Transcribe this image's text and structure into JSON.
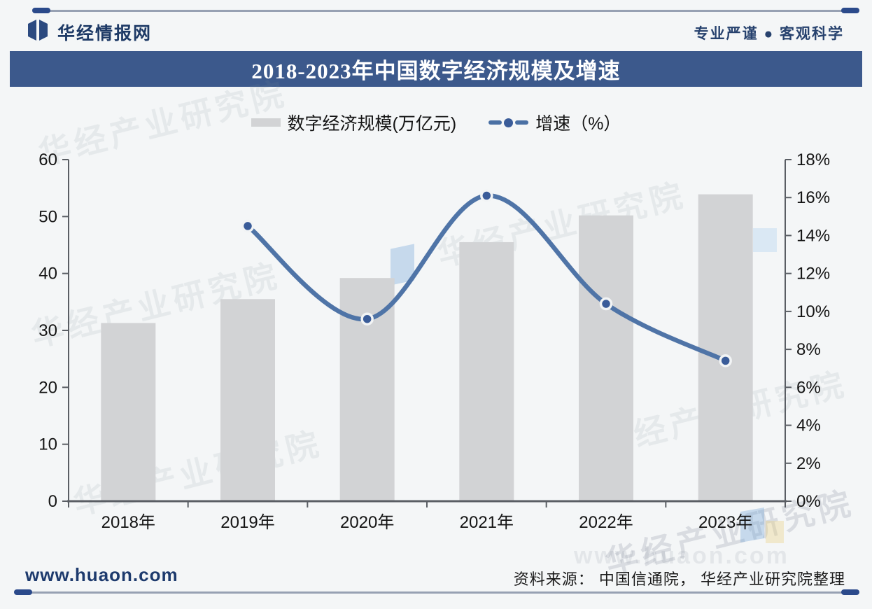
{
  "header": {
    "brand": "华经情报网",
    "tagline": "专业严谨 ● 客观科学"
  },
  "title": "2018-2023年中国数字经济规模及增速",
  "legend": {
    "bar_label": "数字经济规模(万亿元)",
    "line_label": "增速（%）"
  },
  "chart_data": {
    "type": "combo-bar-line",
    "title": "2018-2023年中国数字经济规模及增速",
    "categories": [
      "2018年",
      "2019年",
      "2020年",
      "2021年",
      "2022年",
      "2023年"
    ],
    "series": [
      {
        "name": "数字经济规模(万亿元)",
        "type": "bar",
        "y_axis": "left",
        "values": [
          31.3,
          35.5,
          39.2,
          45.5,
          50.2,
          53.9
        ]
      },
      {
        "name": "增速（%）",
        "type": "line",
        "y_axis": "right",
        "values": [
          null,
          14.5,
          9.6,
          16.1,
          10.4,
          7.4
        ]
      }
    ],
    "left_axis": {
      "min": 0,
      "max": 60,
      "step": 10,
      "labels": [
        "0",
        "10",
        "20",
        "30",
        "40",
        "50",
        "60"
      ]
    },
    "right_axis": {
      "min": 0,
      "max": 18,
      "step": 2,
      "labels": [
        "0%",
        "2%",
        "4%",
        "6%",
        "8%",
        "10%",
        "12%",
        "14%",
        "16%",
        "18%"
      ]
    },
    "grid": false,
    "legend_position": "top"
  },
  "footer": {
    "website": "www.huaon.com",
    "source": "资料来源： 中国信通院， 华经产业研究院整理"
  },
  "watermark": {
    "text": "华经产业研究院",
    "url": "www.huaon.com"
  },
  "colors": {
    "title_bar": "#3c598c",
    "bar": "#d2d3d5",
    "line": "#4f74a7",
    "marker": "#3a5c99",
    "marker_ring": "#f2f4f5",
    "axis": "#5a5e64",
    "brand_navy": "#1e3a66",
    "rule_thin": "#97a1b3",
    "rule_thick": "#2b4a8b"
  }
}
